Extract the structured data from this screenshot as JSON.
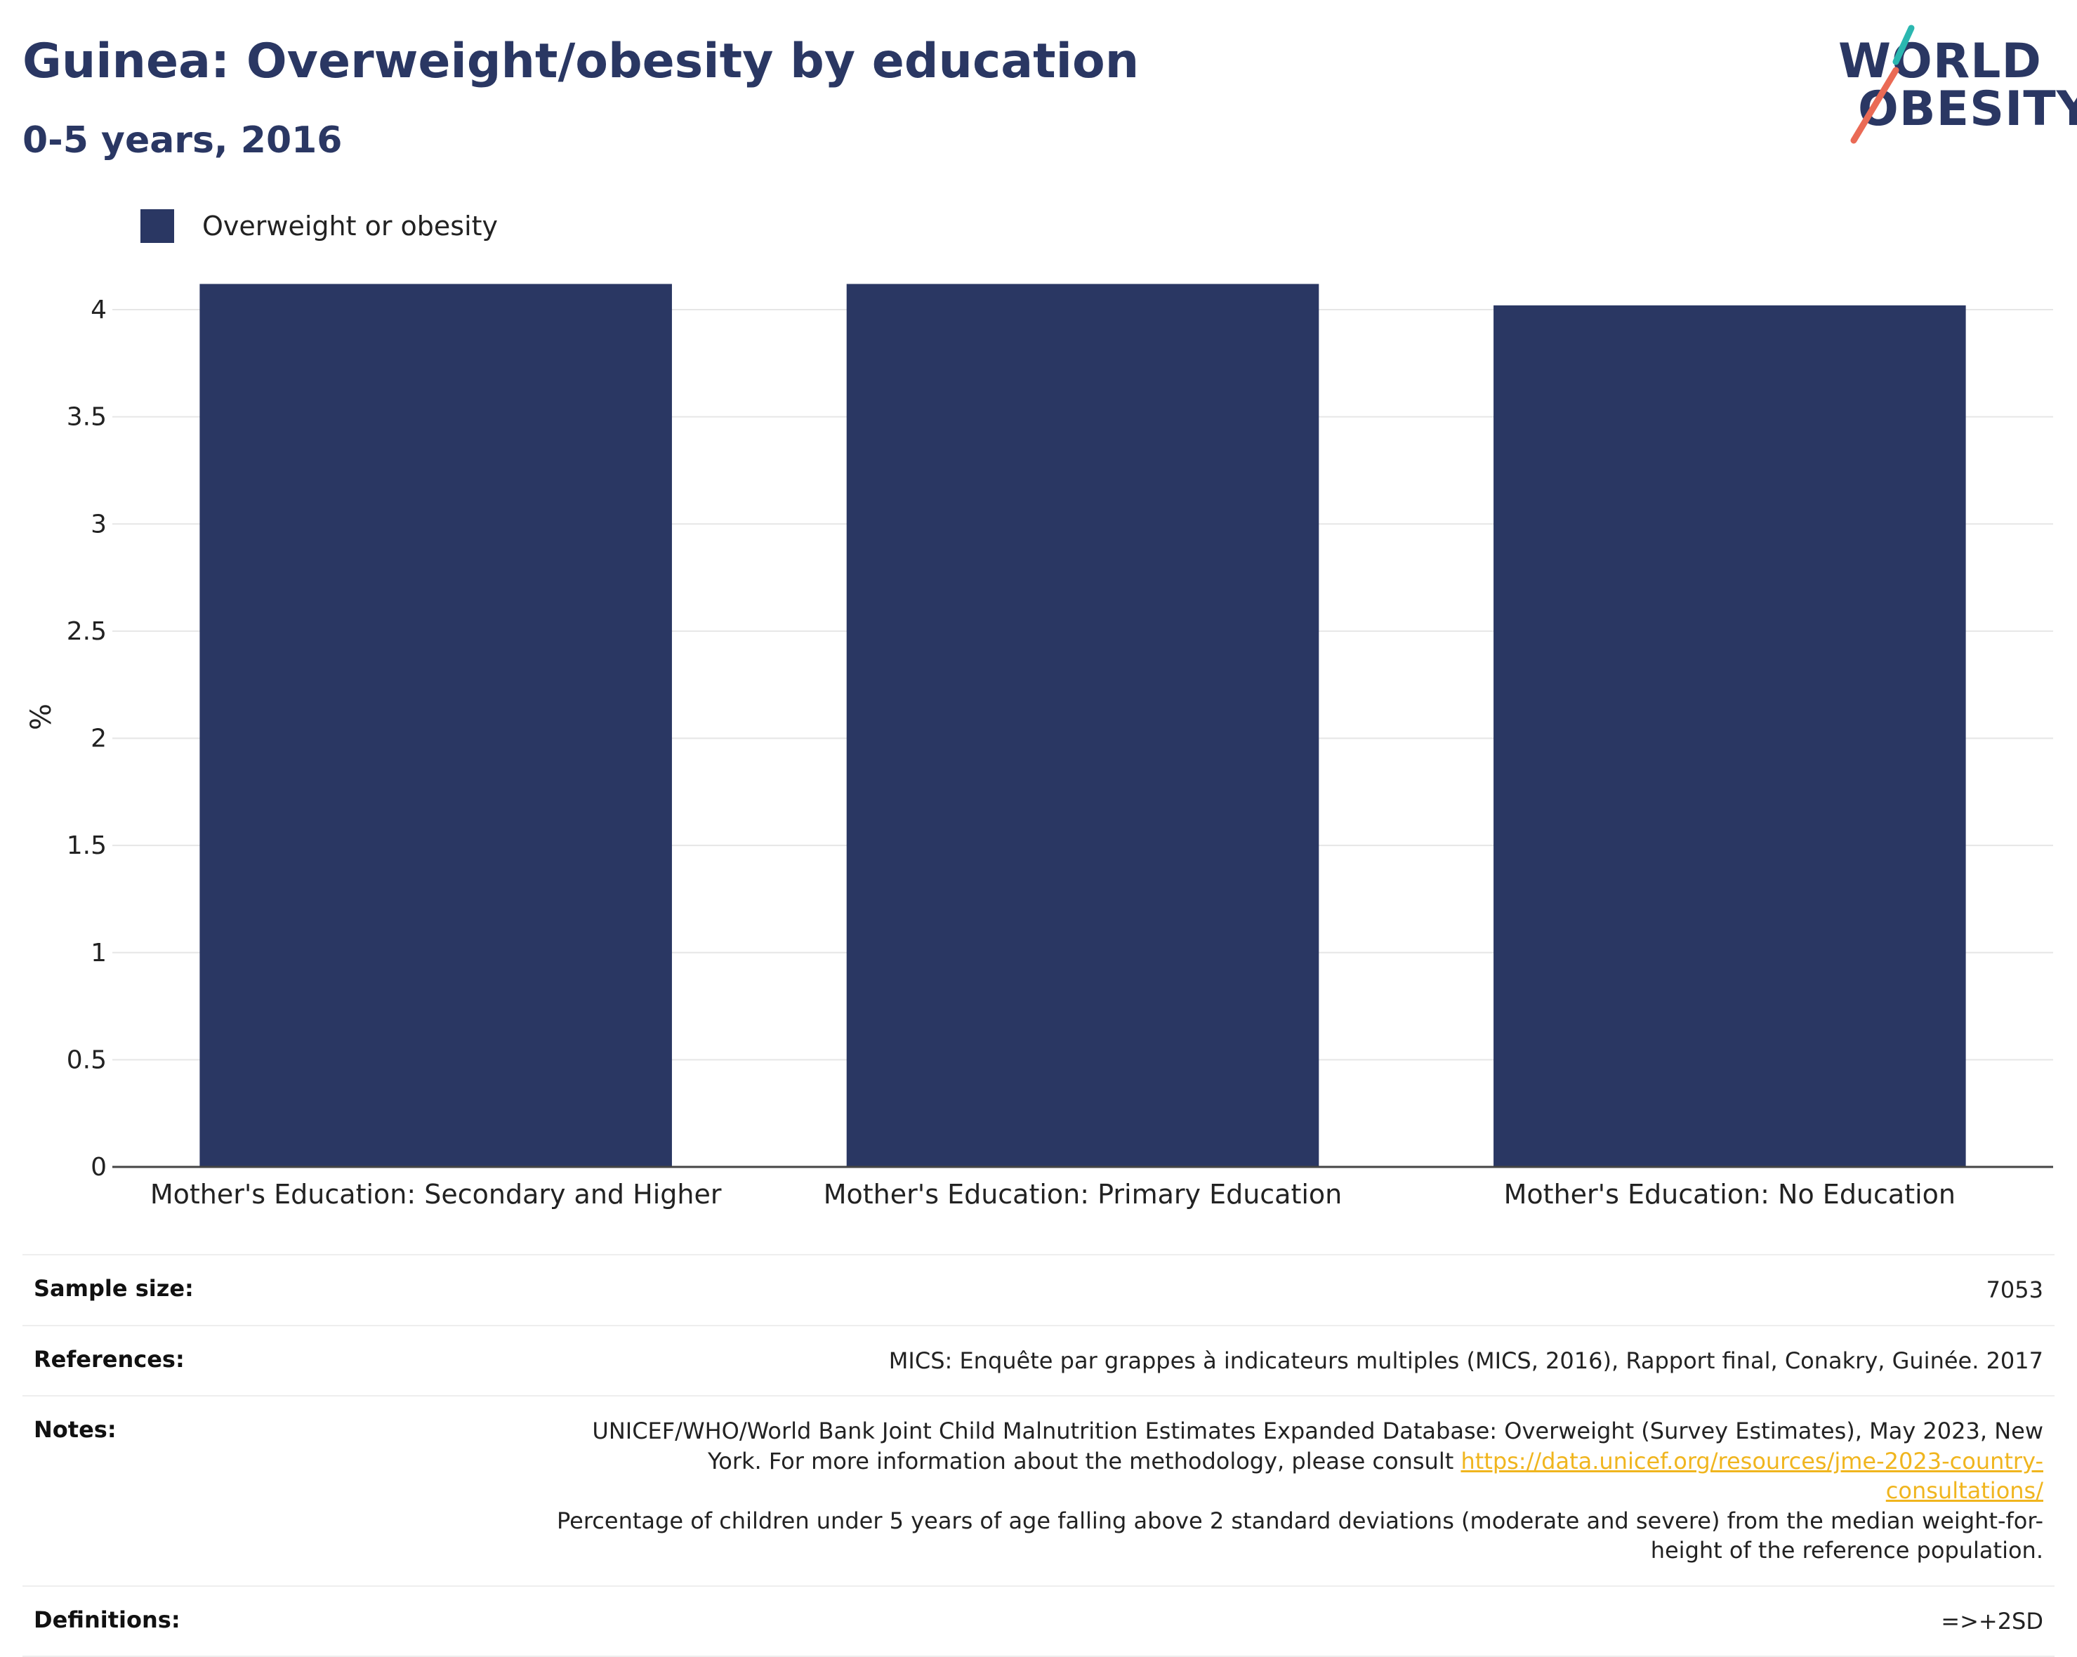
{
  "header": {
    "title": "Guinea: Overweight/obesity by education",
    "subtitle": "0-5 years, 2016"
  },
  "logo": {
    "line1": "WORLD",
    "line2": "OBESITY",
    "colors": {
      "text": "#2a3763",
      "slash_top": "#2bb7b0",
      "slash_bottom": "#ea6a55"
    }
  },
  "legend": {
    "items": [
      {
        "label": "Overweight or obesity",
        "color": "#2a3763"
      }
    ]
  },
  "chart_data": {
    "type": "bar",
    "categories": [
      "Mother's Education: Secondary and Higher",
      "Mother's Education: Primary Education",
      "Mother's Education: No Education"
    ],
    "series": [
      {
        "name": "Overweight or obesity",
        "values": [
          4.12,
          4.12,
          4.02
        ],
        "color": "#2a3763"
      }
    ],
    "ylabel": "%",
    "ylim": [
      0,
      4.2
    ],
    "yticks": [
      0,
      0.5,
      1,
      1.5,
      2,
      2.5,
      3,
      3.5,
      4
    ],
    "ytick_labels": [
      "0",
      "0.5",
      "1",
      "1.5",
      "2",
      "2.5",
      "3",
      "3.5",
      "4"
    ],
    "grid": true,
    "legend_position": "top-left"
  },
  "info": {
    "sample_size": {
      "label": "Sample size:",
      "value": "7053"
    },
    "references": {
      "label": "References:",
      "value": "MICS: Enquête par grappes à indicateurs multiples (MICS, 2016), Rapport final, Conakry, Guinée. 2017"
    },
    "notes": {
      "label": "Notes:",
      "text_before_link": "UNICEF/WHO/World Bank Joint Child Malnutrition Estimates Expanded Database: Overweight (Survey Estimates), May 2023, New York. For more information about the methodology, please consult",
      "link": "https://data.unicef.org/resources/jme-2023-country-consultations/",
      "text_after_link": "Percentage of children under 5 years of age falling above 2 standard deviations (moderate and severe) from the median weight-for-height of the reference population."
    },
    "definitions": {
      "label": "Definitions:",
      "value": "=>+2SD"
    }
  }
}
